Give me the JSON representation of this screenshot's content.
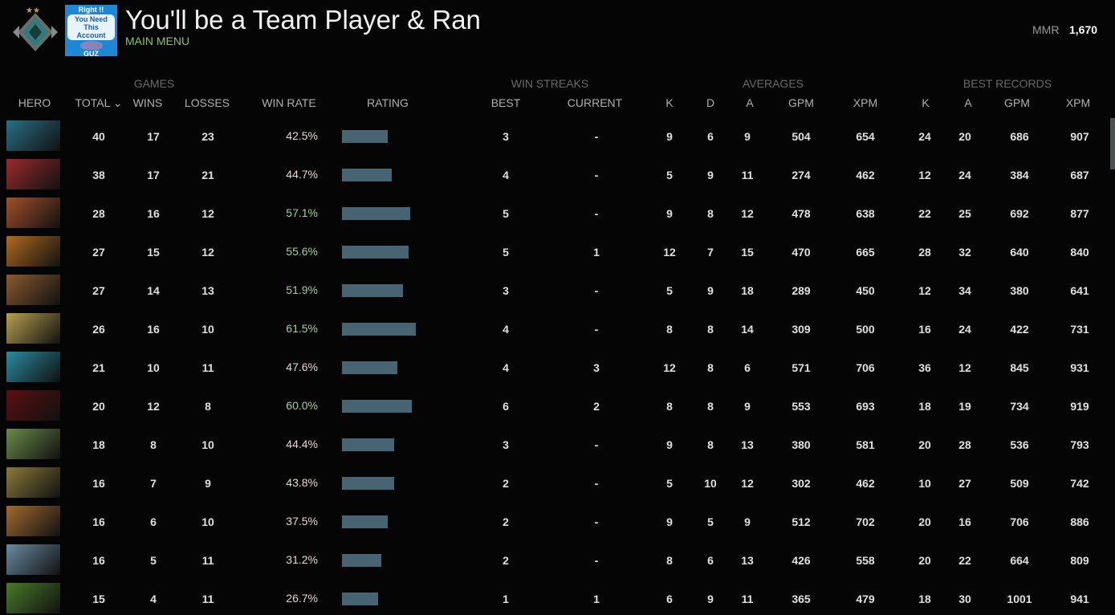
{
  "header": {
    "title": "You'll be a Team Player & Ran",
    "subtitle": "MAIN MENU",
    "thumb_lines": [
      "Right !!",
      "You Need This",
      "Account",
      "GUZ"
    ],
    "mmr_label": "MMR",
    "mmr_value": "1,670"
  },
  "groups": {
    "games": "GAMES",
    "streaks": "WIN STREAKS",
    "averages": "AVERAGES",
    "best": "BEST RECORDS"
  },
  "columns": {
    "hero": "HERO",
    "total": "TOTAL ⌄",
    "wins": "WINS",
    "losses": "LOSSES",
    "winrate": "WIN RATE",
    "rating": "RATING",
    "best": "BEST",
    "current": "CURRENT",
    "k": "K",
    "d": "D",
    "a": "A",
    "gpm": "GPM",
    "xpm": "XPM",
    "bk": "K",
    "ba": "A",
    "bgpm": "GPM",
    "bxpm": "XPM"
  },
  "colors": {
    "bar": "#466472",
    "win_good": "#a8cba0",
    "win_bad": "#e6d6d6"
  },
  "rows": [
    {
      "color": "#2a6f86",
      "total": "40",
      "wins": "17",
      "losses": "23",
      "winrate": "42.5%",
      "rating": 0.62,
      "best": "3",
      "current": "-",
      "k": "9",
      "d": "6",
      "a": "9",
      "gpm": "504",
      "xpm": "654",
      "bk": "24",
      "ba": "20",
      "bgpm": "686",
      "bxpm": "907"
    },
    {
      "color": "#9a2b2b",
      "total": "38",
      "wins": "17",
      "losses": "21",
      "winrate": "44.7%",
      "rating": 0.67,
      "best": "4",
      "current": "-",
      "k": "5",
      "d": "9",
      "a": "11",
      "gpm": "274",
      "xpm": "462",
      "bk": "12",
      "ba": "24",
      "bgpm": "384",
      "bxpm": "687"
    },
    {
      "color": "#a0502a",
      "total": "28",
      "wins": "16",
      "losses": "12",
      "winrate": "57.1%",
      "rating": 0.92,
      "best": "5",
      "current": "-",
      "k": "9",
      "d": "8",
      "a": "12",
      "gpm": "478",
      "xpm": "638",
      "bk": "22",
      "ba": "25",
      "bgpm": "692",
      "bxpm": "877"
    },
    {
      "color": "#b06a20",
      "total": "27",
      "wins": "15",
      "losses": "12",
      "winrate": "55.6%",
      "rating": 0.9,
      "best": "5",
      "current": "1",
      "k": "12",
      "d": "7",
      "a": "15",
      "gpm": "470",
      "xpm": "665",
      "bk": "28",
      "ba": "32",
      "bgpm": "640",
      "bxpm": "840"
    },
    {
      "color": "#8a5a30",
      "total": "27",
      "wins": "14",
      "losses": "13",
      "winrate": "51.9%",
      "rating": 0.83,
      "best": "3",
      "current": "-",
      "k": "5",
      "d": "9",
      "a": "18",
      "gpm": "289",
      "xpm": "450",
      "bk": "12",
      "ba": "34",
      "bgpm": "380",
      "bxpm": "641"
    },
    {
      "color": "#b8a050",
      "total": "26",
      "wins": "16",
      "losses": "10",
      "winrate": "61.5%",
      "rating": 1.0,
      "best": "4",
      "current": "-",
      "k": "8",
      "d": "8",
      "a": "14",
      "gpm": "309",
      "xpm": "500",
      "bk": "16",
      "ba": "24",
      "bgpm": "422",
      "bxpm": "731"
    },
    {
      "color": "#2a8aa0",
      "total": "21",
      "wins": "10",
      "losses": "11",
      "winrate": "47.6%",
      "rating": 0.75,
      "best": "4",
      "current": "3",
      "k": "12",
      "d": "8",
      "a": "6",
      "gpm": "571",
      "xpm": "706",
      "bk": "36",
      "ba": "12",
      "bgpm": "845",
      "bxpm": "931"
    },
    {
      "color": "#5a1010",
      "total": "20",
      "wins": "12",
      "losses": "8",
      "winrate": "60.0%",
      "rating": 0.95,
      "best": "6",
      "current": "2",
      "k": "8",
      "d": "8",
      "a": "9",
      "gpm": "553",
      "xpm": "693",
      "bk": "18",
      "ba": "19",
      "bgpm": "734",
      "bxpm": "919"
    },
    {
      "color": "#6a8a4a",
      "total": "18",
      "wins": "8",
      "losses": "10",
      "winrate": "44.4%",
      "rating": 0.71,
      "best": "3",
      "current": "-",
      "k": "9",
      "d": "8",
      "a": "13",
      "gpm": "380",
      "xpm": "581",
      "bk": "20",
      "ba": "28",
      "bgpm": "536",
      "bxpm": "793"
    },
    {
      "color": "#8a7a3a",
      "total": "16",
      "wins": "7",
      "losses": "9",
      "winrate": "43.8%",
      "rating": 0.71,
      "best": "2",
      "current": "-",
      "k": "5",
      "d": "10",
      "a": "12",
      "gpm": "302",
      "xpm": "462",
      "bk": "10",
      "ba": "27",
      "bgpm": "509",
      "bxpm": "742"
    },
    {
      "color": "#a06a30",
      "total": "16",
      "wins": "6",
      "losses": "10",
      "winrate": "37.5%",
      "rating": 0.62,
      "best": "2",
      "current": "-",
      "k": "9",
      "d": "5",
      "a": "9",
      "gpm": "512",
      "xpm": "702",
      "bk": "20",
      "ba": "16",
      "bgpm": "706",
      "bxpm": "886"
    },
    {
      "color": "#6a8aa0",
      "total": "16",
      "wins": "5",
      "losses": "11",
      "winrate": "31.2%",
      "rating": 0.53,
      "best": "2",
      "current": "-",
      "k": "8",
      "d": "6",
      "a": "13",
      "gpm": "426",
      "xpm": "558",
      "bk": "20",
      "ba": "22",
      "bgpm": "664",
      "bxpm": "809"
    },
    {
      "color": "#4a7a2a",
      "total": "15",
      "wins": "4",
      "losses": "11",
      "winrate": "26.7%",
      "rating": 0.49,
      "best": "1",
      "current": "1",
      "k": "6",
      "d": "9",
      "a": "11",
      "gpm": "365",
      "xpm": "479",
      "bk": "18",
      "ba": "30",
      "bgpm": "1001",
      "bxpm": "941"
    }
  ]
}
